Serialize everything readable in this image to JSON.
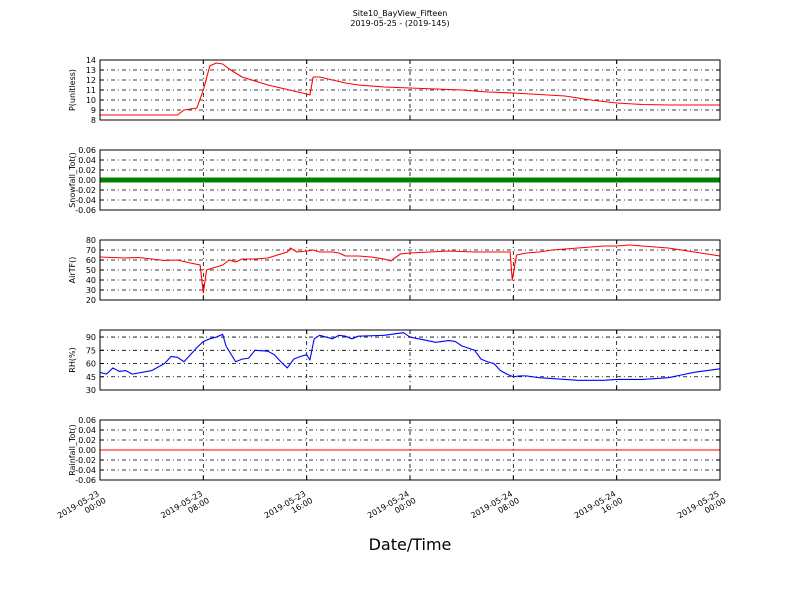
{
  "chart_data": [
    {
      "type": "line",
      "title": "Site10_BayView_Fifteen",
      "subtitle": "2019-05-25 - (2019-145)",
      "ylabel": "P(unitless)",
      "color": "#ff0000",
      "ylim": [
        8,
        14
      ],
      "yticks": [
        8,
        9,
        10,
        11,
        12,
        13,
        14
      ],
      "grid": true,
      "x": [
        "2019-05-23 00:00",
        "2019-05-23 06:00",
        "2019-05-23 06:30",
        "2019-05-23 07:30",
        "2019-05-23 08:00",
        "2019-05-23 08:30",
        "2019-05-23 09:00",
        "2019-05-23 09:30",
        "2019-05-23 10:00",
        "2019-05-23 11:00",
        "2019-05-23 12:00",
        "2019-05-23 13:00",
        "2019-05-23 14:00",
        "2019-05-23 15:00",
        "2019-05-23 16:00",
        "2019-05-23 16:15",
        "2019-05-23 16:30",
        "2019-05-23 17:00",
        "2019-05-23 18:00",
        "2019-05-23 19:00",
        "2019-05-23 20:00",
        "2019-05-23 22:00",
        "2019-05-24 00:00",
        "2019-05-24 02:00",
        "2019-05-24 04:00",
        "2019-05-24 06:00",
        "2019-05-24 08:00",
        "2019-05-24 10:00",
        "2019-05-24 12:00",
        "2019-05-24 14:00",
        "2019-05-24 16:00",
        "2019-05-24 18:00",
        "2019-05-24 20:00",
        "2019-05-25 00:00"
      ],
      "values": [
        8.5,
        8.5,
        9,
        9.2,
        11,
        13.4,
        13.7,
        13.6,
        13.1,
        12.3,
        11.9,
        11.5,
        11.2,
        10.9,
        10.6,
        10.5,
        12.3,
        12.3,
        12,
        11.7,
        11.5,
        11.3,
        11.2,
        11.1,
        11,
        10.8,
        10.7,
        10.55,
        10.4,
        10,
        9.7,
        9.55,
        9.5,
        9.5
      ]
    },
    {
      "type": "line",
      "ylabel": "Snowfall_Tot()",
      "color": "#008000",
      "ylim": [
        -0.06,
        0.06
      ],
      "yticks": [
        -0.06,
        -0.04,
        -0.02,
        {
          "value": 0,
          "label": "0.00"
        },
        0.02,
        0.04,
        0.06
      ],
      "grid": true,
      "x": [
        "2019-05-23 00:00",
        "2019-05-23 02:00",
        "2019-05-23 04:00",
        "2019-05-23 06:00",
        "2019-05-23 08:00",
        "2019-05-23 10:00",
        "2019-05-23 12:00",
        "2019-05-23 14:00",
        "2019-05-23 16:00",
        "2019-05-23 18:00",
        "2019-05-23 20:00",
        "2019-05-23 22:00",
        "2019-05-24 00:00",
        "2019-05-24 02:00",
        "2019-05-24 04:00",
        "2019-05-24 06:00",
        "2019-05-24 08:00",
        "2019-05-24 10:00",
        "2019-05-24 12:00",
        "2019-05-24 14:00",
        "2019-05-24 16:00",
        "2019-05-24 18:00",
        "2019-05-24 20:00",
        "2019-05-24 22:00",
        "2019-05-25 00:00"
      ],
      "values": [
        0,
        0,
        0,
        0,
        0,
        0,
        0,
        0,
        0,
        0,
        0,
        0,
        0,
        0,
        0,
        0,
        0,
        0,
        0,
        0,
        0,
        0,
        0,
        0,
        0
      ]
    },
    {
      "type": "line",
      "ylabel": "AirTF()",
      "color": "#ff0000",
      "ylim": [
        20,
        80
      ],
      "yticks": [
        20,
        30,
        40,
        50,
        60,
        70,
        80
      ],
      "grid": true,
      "x": [
        "2019-05-23 00:00",
        "2019-05-23 02:00",
        "2019-05-23 03:00",
        "2019-05-23 04:00",
        "2019-05-23 05:00",
        "2019-05-23 06:00",
        "2019-05-23 07:00",
        "2019-05-23 07:45",
        "2019-05-23 08:00",
        "2019-05-23 08:15",
        "2019-05-23 09:00",
        "2019-05-23 09:30",
        "2019-05-23 10:00",
        "2019-05-23 10:30",
        "2019-05-23 11:00",
        "2019-05-23 12:00",
        "2019-05-23 13:00",
        "2019-05-23 14:00",
        "2019-05-23 14:30",
        "2019-05-23 14:45",
        "2019-05-23 15:15",
        "2019-05-23 16:00",
        "2019-05-23 16:30",
        "2019-05-23 17:00",
        "2019-05-23 18:00",
        "2019-05-23 18:30",
        "2019-05-23 19:00",
        "2019-05-23 20:00",
        "2019-05-23 21:00",
        "2019-05-23 22:00",
        "2019-05-23 22:30",
        "2019-05-23 23:15",
        "2019-05-24 00:00",
        "2019-05-24 01:30",
        "2019-05-24 03:00",
        "2019-05-24 05:00",
        "2019-05-24 07:00",
        "2019-05-24 07:45",
        "2019-05-24 07:55",
        "2019-05-24 08:15",
        "2019-05-24 09:00",
        "2019-05-24 10:00",
        "2019-05-24 11:00",
        "2019-05-24 12:00",
        "2019-05-24 13:00",
        "2019-05-24 14:00",
        "2019-05-24 15:00",
        "2019-05-24 16:00",
        "2019-05-24 17:00",
        "2019-05-24 18:00",
        "2019-05-24 19:00",
        "2019-05-24 20:00",
        "2019-05-24 21:00",
        "2019-05-24 22:00",
        "2019-05-24 23:00",
        "2019-05-25 00:00"
      ],
      "values": [
        63,
        62,
        62.5,
        61,
        59.5,
        60,
        57,
        55,
        27,
        50,
        53,
        55,
        60,
        58,
        61,
        61,
        62,
        66,
        68,
        72,
        68,
        69,
        70,
        68,
        68,
        67,
        64,
        64,
        63,
        61,
        59,
        66,
        67,
        68,
        69,
        68,
        68,
        68,
        40,
        65,
        67,
        68,
        70,
        71,
        72,
        73,
        74,
        74,
        75,
        74,
        73,
        72,
        70,
        68,
        66,
        64
      ]
    },
    {
      "type": "line",
      "ylabel": "RH(%)",
      "color": "#0000ff",
      "ylim": [
        30,
        98
      ],
      "yticks": [
        30,
        45,
        60,
        75,
        90
      ],
      "grid": true,
      "x": [
        "2019-05-23 00:00",
        "2019-05-23 00:30",
        "2019-05-23 01:00",
        "2019-05-23 01:30",
        "2019-05-23 02:00",
        "2019-05-23 02:30",
        "2019-05-23 04:00",
        "2019-05-23 05:00",
        "2019-05-23 05:30",
        "2019-05-23 06:00",
        "2019-05-23 06:30",
        "2019-05-23 07:00",
        "2019-05-23 07:30",
        "2019-05-23 08:00",
        "2019-05-23 08:30",
        "2019-05-23 09:00",
        "2019-05-23 09:30",
        "2019-05-23 09:45",
        "2019-05-23 10:30",
        "2019-05-23 11:00",
        "2019-05-23 11:30",
        "2019-05-23 12:00",
        "2019-05-23 13:00",
        "2019-05-23 13:30",
        "2019-05-23 14:00",
        "2019-05-23 14:30",
        "2019-05-23 15:00",
        "2019-05-23 15:30",
        "2019-05-23 16:00",
        "2019-05-23 16:15",
        "2019-05-23 16:35",
        "2019-05-23 17:00",
        "2019-05-23 18:00",
        "2019-05-23 18:30",
        "2019-05-23 19:00",
        "2019-05-23 19:30",
        "2019-05-23 20:00",
        "2019-05-23 22:00",
        "2019-05-23 23:00",
        "2019-05-23 23:30",
        "2019-05-24 00:00",
        "2019-05-24 01:00",
        "2019-05-24 02:00",
        "2019-05-24 03:00",
        "2019-05-24 03:30",
        "2019-05-24 04:00",
        "2019-05-24 05:00",
        "2019-05-24 05:30",
        "2019-05-24 06:00",
        "2019-05-24 06:30",
        "2019-05-24 07:00",
        "2019-05-24 07:30",
        "2019-05-24 08:00",
        "2019-05-24 08:30",
        "2019-05-24 09:00",
        "2019-05-24 10:00",
        "2019-05-24 11:00",
        "2019-05-24 12:00",
        "2019-05-24 13:00",
        "2019-05-24 14:00",
        "2019-05-24 15:00",
        "2019-05-24 16:00",
        "2019-05-24 18:00",
        "2019-05-24 19:00",
        "2019-05-24 20:00",
        "2019-05-24 21:00",
        "2019-05-24 22:00",
        "2019-05-24 23:00",
        "2019-05-25 00:00"
      ],
      "values": [
        50,
        48,
        55,
        51,
        52,
        48,
        52,
        60,
        68,
        67,
        62,
        70,
        78,
        85,
        88,
        90,
        93,
        80,
        62,
        65,
        66,
        75,
        74,
        70,
        62,
        55,
        65,
        68,
        70,
        64,
        88,
        92,
        88,
        92,
        91,
        88,
        91,
        92,
        94,
        95,
        90,
        87,
        84,
        86,
        85,
        80,
        75,
        65,
        62,
        60,
        52,
        48,
        45,
        46,
        46,
        44,
        43,
        42,
        41,
        41,
        41,
        42,
        42,
        43,
        44,
        47,
        50,
        52,
        54
      ]
    },
    {
      "type": "line",
      "ylabel": "Rainfall_Tot()",
      "xlabel": "Date/Time",
      "color": "#ff0000",
      "ylim": [
        -0.06,
        0.06
      ],
      "yticks": [
        -0.06,
        -0.04,
        -0.02,
        {
          "value": 0,
          "label": "0.00"
        },
        0.02,
        0.04,
        0.06
      ],
      "grid": true,
      "xlim": [
        "2019-05-23 00:00",
        "2019-05-25 00:00"
      ],
      "xticks": [
        "2019-05-23 00:00",
        "2019-05-23 08:00",
        "2019-05-23 16:00",
        "2019-05-24 00:00",
        "2019-05-24 08:00",
        "2019-05-24 16:00",
        "2019-05-25 00:00"
      ],
      "x": [
        "2019-05-23 00:00",
        "2019-05-23 02:00",
        "2019-05-23 04:00",
        "2019-05-23 06:00",
        "2019-05-23 08:00",
        "2019-05-23 10:00",
        "2019-05-23 12:00",
        "2019-05-23 14:00",
        "2019-05-23 16:00",
        "2019-05-23 18:00",
        "2019-05-23 20:00",
        "2019-05-23 22:00",
        "2019-05-24 00:00",
        "2019-05-24 02:00",
        "2019-05-24 04:00",
        "2019-05-24 06:00",
        "2019-05-24 08:00",
        "2019-05-24 10:00",
        "2019-05-24 12:00",
        "2019-05-24 14:00",
        "2019-05-24 16:00",
        "2019-05-24 18:00",
        "2019-05-24 20:00",
        "2019-05-24 22:00",
        "2019-05-25 00:00"
      ],
      "values": [
        0,
        0,
        0,
        0,
        0,
        0,
        0,
        0,
        0,
        0,
        0,
        0,
        0,
        0,
        0,
        0,
        0,
        0,
        0,
        0,
        0,
        0,
        0,
        0,
        0
      ]
    }
  ]
}
